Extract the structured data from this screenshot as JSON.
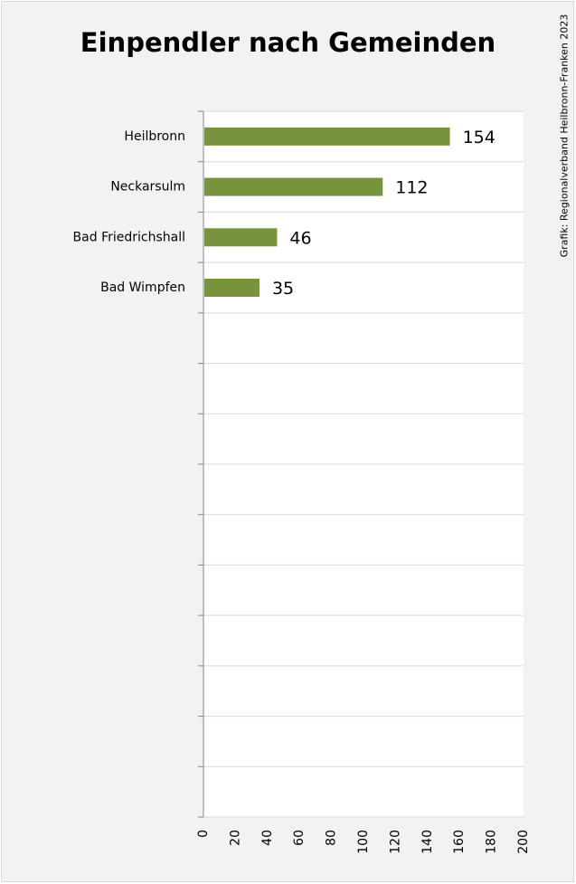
{
  "credit": "Grafik: Regionalverband Heilbronn-Franken 2023",
  "chart_data": {
    "type": "bar",
    "orientation": "horizontal",
    "title": "Einpendler nach Gemeinden",
    "categories": [
      "Heilbronn",
      "Neckarsulm",
      "Bad Friedrichshall",
      "Bad Wimpfen"
    ],
    "values": [
      154,
      112,
      46,
      35
    ],
    "empty_category_slots": 10,
    "xlim": [
      0,
      200
    ],
    "x_ticks": [
      0,
      20,
      40,
      60,
      80,
      100,
      120,
      140,
      160,
      180,
      200
    ],
    "x_tick_labels_rotated": true,
    "data_labels": true,
    "grid": true,
    "legend": "none",
    "bar_color": "#77933c"
  }
}
